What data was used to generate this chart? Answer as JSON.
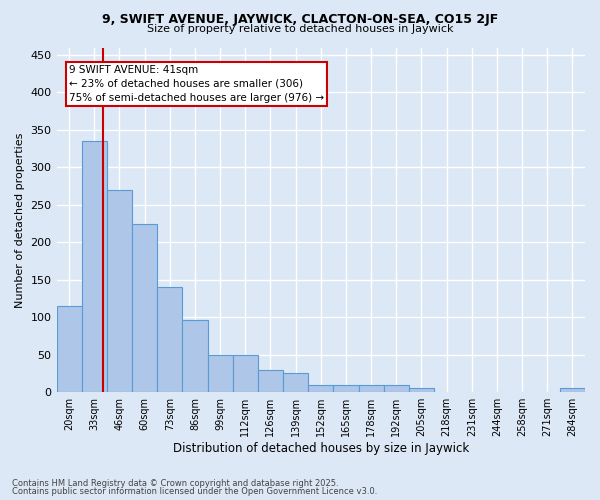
{
  "title1": "9, SWIFT AVENUE, JAYWICK, CLACTON-ON-SEA, CO15 2JF",
  "title2": "Size of property relative to detached houses in Jaywick",
  "xlabel": "Distribution of detached houses by size in Jaywick",
  "ylabel": "Number of detached properties",
  "categories": [
    "20sqm",
    "33sqm",
    "46sqm",
    "60sqm",
    "73sqm",
    "86sqm",
    "99sqm",
    "112sqm",
    "126sqm",
    "139sqm",
    "152sqm",
    "165sqm",
    "178sqm",
    "192sqm",
    "205sqm",
    "218sqm",
    "231sqm",
    "244sqm",
    "258sqm",
    "271sqm",
    "284sqm"
  ],
  "values": [
    115,
    335,
    270,
    225,
    140,
    97,
    50,
    50,
    30,
    25,
    10,
    10,
    10,
    10,
    5,
    0,
    0,
    0,
    0,
    0,
    5
  ],
  "bar_color": "#aec6e8",
  "bar_edge_color": "#5b9bd5",
  "background_color": "#dce8f5",
  "grid_color": "#ffffff",
  "property_line_x": 1.35,
  "property_label": "9 SWIFT AVENUE: 41sqm",
  "annotation_line1": "← 23% of detached houses are smaller (306)",
  "annotation_line2": "75% of semi-detached houses are larger (976) →",
  "annotation_box_color": "#ffffff",
  "annotation_box_edge": "#cc0000",
  "property_line_color": "#cc0000",
  "ylim": [
    0,
    460
  ],
  "yticks": [
    0,
    50,
    100,
    150,
    200,
    250,
    300,
    350,
    400,
    450
  ],
  "footnote1": "Contains HM Land Registry data © Crown copyright and database right 2025.",
  "footnote2": "Contains public sector information licensed under the Open Government Licence v3.0."
}
